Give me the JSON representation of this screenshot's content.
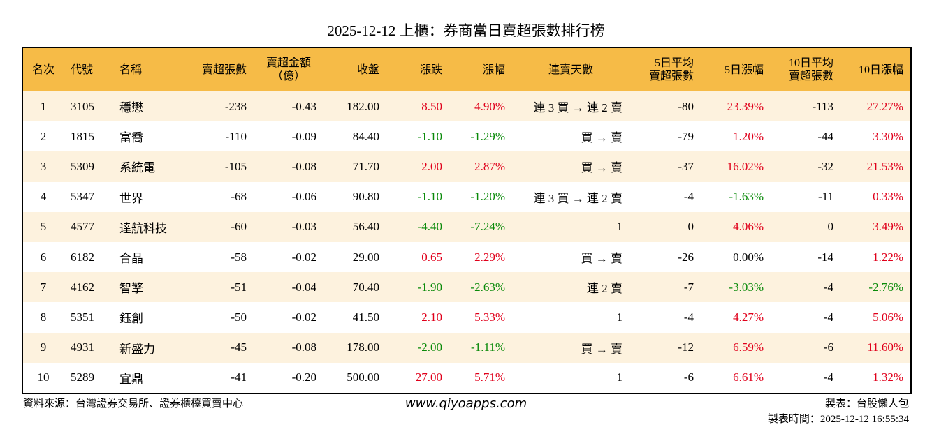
{
  "header": {
    "title": "2025-12-12 上櫃：券商當日賣超張數排行榜"
  },
  "table": {
    "columns": [
      "名次",
      "代號",
      "名稱",
      "賣超張數",
      "賣超金額\n（億）",
      "收盤",
      "漲跌",
      "漲幅",
      "連賣天數",
      "5日平均\n賣超張數",
      "5日漲幅",
      "10日平均\n賣超張數",
      "10日漲幅"
    ],
    "rows": [
      [
        "1",
        "3105",
        "穩懋",
        "-238",
        "-0.43",
        "182.00",
        "8.50",
        "4.90%",
        "連 3 買 → 連 2 賣",
        "-80",
        "23.39%",
        "-113",
        "27.27%"
      ],
      [
        "2",
        "1815",
        "富喬",
        "-110",
        "-0.09",
        "84.40",
        "-1.10",
        "-1.29%",
        "買 → 賣",
        "-79",
        "1.20%",
        "-44",
        "3.30%"
      ],
      [
        "3",
        "5309",
        "系統電",
        "-105",
        "-0.08",
        "71.70",
        "2.00",
        "2.87%",
        "買 → 賣",
        "-37",
        "16.02%",
        "-32",
        "21.53%"
      ],
      [
        "4",
        "5347",
        "世界",
        "-68",
        "-0.06",
        "90.80",
        "-1.10",
        "-1.20%",
        "連 3 買 → 連 2 賣",
        "-4",
        "-1.63%",
        "-11",
        "0.33%"
      ],
      [
        "5",
        "4577",
        "達航科技",
        "-60",
        "-0.03",
        "56.40",
        "-4.40",
        "-7.24%",
        "1",
        "0",
        "4.06%",
        "0",
        "3.49%"
      ],
      [
        "6",
        "6182",
        "合晶",
        "-58",
        "-0.02",
        "29.00",
        "0.65",
        "2.29%",
        "買 → 賣",
        "-26",
        "0.00%",
        "-14",
        "1.22%"
      ],
      [
        "7",
        "4162",
        "智擎",
        "-51",
        "-0.04",
        "70.40",
        "-1.90",
        "-2.63%",
        "連 2 賣",
        "-7",
        "-3.03%",
        "-4",
        "-2.76%"
      ],
      [
        "8",
        "5351",
        "鈺創",
        "-50",
        "-0.02",
        "41.50",
        "2.10",
        "5.33%",
        "1",
        "-4",
        "4.27%",
        "-4",
        "5.06%"
      ],
      [
        "9",
        "4931",
        "新盛力",
        "-45",
        "-0.08",
        "178.00",
        "-2.00",
        "-1.11%",
        "買 → 賣",
        "-12",
        "6.59%",
        "-6",
        "11.60%"
      ],
      [
        "10",
        "5289",
        "宜鼎",
        "-41",
        "-0.20",
        "500.00",
        "27.00",
        "5.71%",
        "1",
        "-6",
        "6.61%",
        "-4",
        "1.32%"
      ]
    ]
  },
  "footer": {
    "source": "資料來源：台灣證券交易所、證券櫃檯買賣中心",
    "website": "www.qiyoapps.com",
    "maker": "製表：台股懶人包",
    "time": "製表時間：2025-12-12 16:55:34"
  }
}
